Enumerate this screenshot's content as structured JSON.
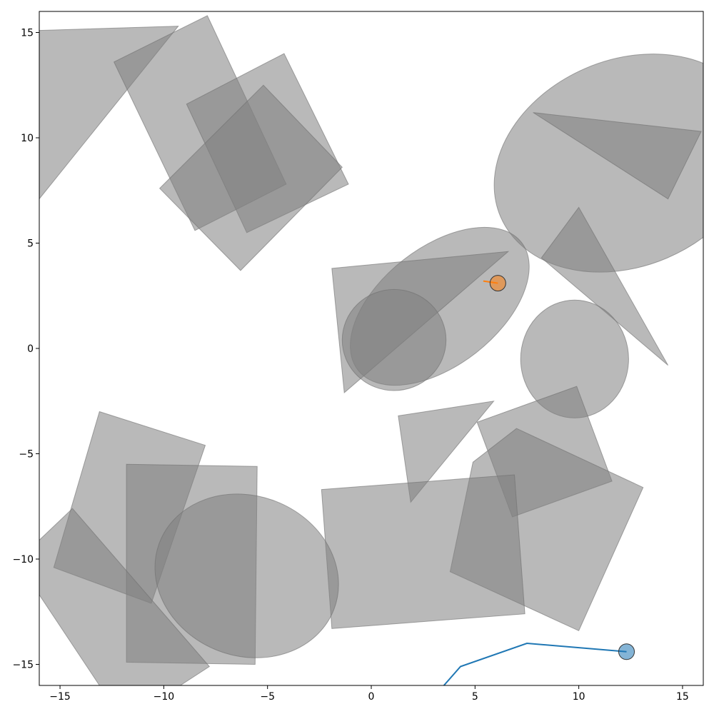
{
  "chart_data": {
    "type": "scatter",
    "title": "",
    "xlabel": "",
    "ylabel": "",
    "xlim": [
      -16,
      16
    ],
    "ylim": [
      -16,
      16
    ],
    "grid": false,
    "x_ticks": [
      -15,
      -10,
      -5,
      0,
      5,
      10,
      15
    ],
    "x_tick_labels": [
      "−15",
      "−10",
      "−5",
      "0",
      "5",
      "10",
      "15"
    ],
    "y_ticks": [
      -15,
      -10,
      -5,
      0,
      5,
      10,
      15
    ],
    "y_tick_labels": [
      "−15",
      "−10",
      "−5",
      "0",
      "5",
      "10",
      "15"
    ],
    "obstacle_color": "#808080",
    "obstacles": [
      {
        "shape": "polygon",
        "points": [
          [
            -16.0,
            15.1
          ],
          [
            -9.3,
            15.3
          ],
          [
            -16.0,
            7.1
          ]
        ]
      },
      {
        "shape": "polygon",
        "points": [
          [
            -12.4,
            13.6
          ],
          [
            -7.9,
            15.8
          ],
          [
            -4.1,
            7.8
          ],
          [
            -8.5,
            5.6
          ]
        ]
      },
      {
        "shape": "polygon",
        "points": [
          [
            -8.9,
            11.6
          ],
          [
            -4.2,
            14.0
          ],
          [
            -1.1,
            7.8
          ],
          [
            -6.0,
            5.5
          ]
        ]
      },
      {
        "shape": "polygon",
        "points": [
          [
            -10.2,
            7.6
          ],
          [
            -5.2,
            12.5
          ],
          [
            -1.4,
            8.6
          ],
          [
            -6.3,
            3.7
          ]
        ]
      },
      {
        "shape": "ellipse",
        "cx": 12.3,
        "cy": 8.8,
        "rx": 6.6,
        "ry": 4.9,
        "angle": -23
      },
      {
        "shape": "polygon",
        "points": [
          [
            7.8,
            11.2
          ],
          [
            15.9,
            10.3
          ],
          [
            14.3,
            7.1
          ]
        ]
      },
      {
        "shape": "polygon",
        "points": [
          [
            8.2,
            4.3
          ],
          [
            10.0,
            6.7
          ],
          [
            14.3,
            -0.8
          ]
        ]
      },
      {
        "shape": "ellipse",
        "cx": 3.3,
        "cy": 2.0,
        "rx": 5.0,
        "ry": 2.8,
        "angle": -38
      },
      {
        "shape": "polygon",
        "points": [
          [
            -1.9,
            3.8
          ],
          [
            6.6,
            4.6
          ],
          [
            -1.3,
            -2.1
          ]
        ]
      },
      {
        "shape": "ellipse",
        "cx": 1.1,
        "cy": 0.4,
        "rx": 2.5,
        "ry": 2.4,
        "angle": 0
      },
      {
        "shape": "ellipse",
        "cx": 9.8,
        "cy": -0.5,
        "rx": 2.6,
        "ry": 2.8,
        "angle": 0
      },
      {
        "shape": "polygon",
        "points": [
          [
            1.3,
            -3.2
          ],
          [
            5.9,
            -2.5
          ],
          [
            1.9,
            -7.3
          ]
        ]
      },
      {
        "shape": "polygon",
        "points": [
          [
            5.1,
            -3.5
          ],
          [
            9.9,
            -1.8
          ],
          [
            11.6,
            -6.3
          ],
          [
            6.8,
            -8.0
          ]
        ]
      },
      {
        "shape": "polygon",
        "points": [
          [
            4.9,
            -5.4
          ],
          [
            7.0,
            -3.8
          ],
          [
            13.1,
            -6.6
          ],
          [
            10.0,
            -13.4
          ],
          [
            3.8,
            -10.6
          ]
        ]
      },
      {
        "shape": "polygon",
        "points": [
          [
            -2.4,
            -6.7
          ],
          [
            6.9,
            -6.0
          ],
          [
            7.4,
            -12.6
          ],
          [
            -1.9,
            -13.3
          ]
        ]
      },
      {
        "shape": "polygon",
        "points": [
          [
            -13.1,
            -3.0
          ],
          [
            -8.0,
            -4.6
          ],
          [
            -10.6,
            -12.1
          ],
          [
            -15.3,
            -10.4
          ]
        ]
      },
      {
        "shape": "polygon",
        "points": [
          [
            -11.8,
            -5.5
          ],
          [
            -5.5,
            -5.6
          ],
          [
            -5.6,
            -15.0
          ],
          [
            -11.8,
            -14.9
          ]
        ]
      },
      {
        "shape": "ellipse",
        "cx": -6.0,
        "cy": -10.8,
        "rx": 4.5,
        "ry": 3.8,
        "angle": 21
      },
      {
        "shape": "polygon",
        "points": [
          [
            -14.4,
            -7.6
          ],
          [
            -16.0,
            -9.1
          ],
          [
            -16.0,
            -11.7
          ],
          [
            -13.1,
            -16.0
          ],
          [
            -9.2,
            -16.0
          ],
          [
            -7.8,
            -15.1
          ]
        ]
      }
    ],
    "series": [
      {
        "color": "#1f77b4",
        "marker_fill": "#1f77b4",
        "path": [
          [
            3.5,
            -16.0
          ],
          [
            4.3,
            -15.1
          ],
          [
            7.5,
            -14.0
          ],
          [
            12.3,
            -14.4
          ]
        ],
        "marker": [
          12.3,
          -14.4
        ]
      },
      {
        "color": "#ff7f0e",
        "marker_fill": "#ff7f0e",
        "path": [
          [
            5.4,
            3.2
          ],
          [
            6.1,
            3.1
          ]
        ],
        "marker": [
          6.1,
          3.1
        ]
      }
    ]
  }
}
